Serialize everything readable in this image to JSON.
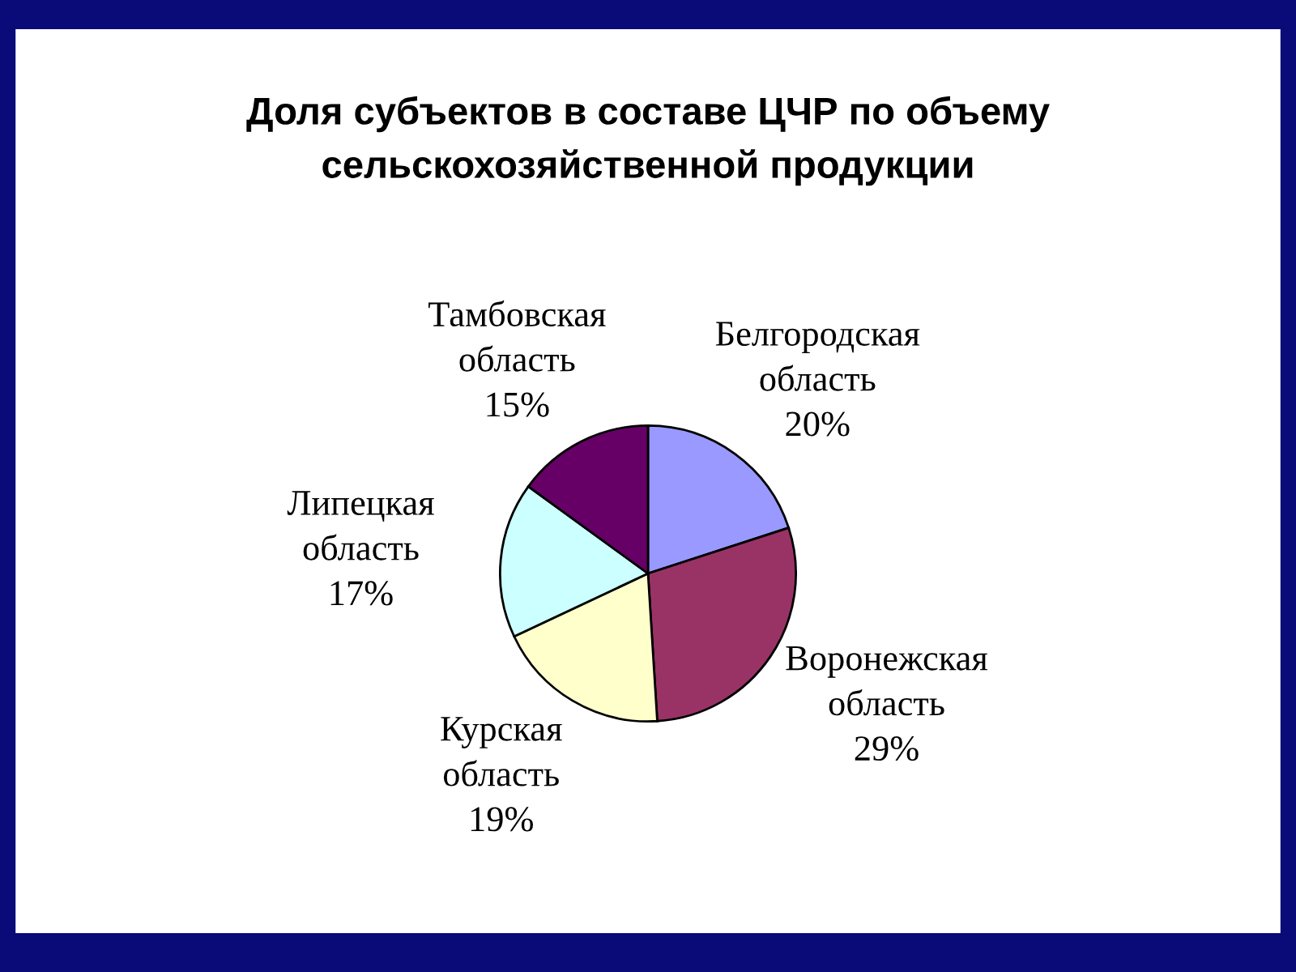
{
  "chart_data": {
    "type": "pie",
    "title": "Доля субъектов в составе ЦЧР по объему\nсельскохозяйственной продукции",
    "categories": [
      "Белгородская область",
      "Воронежская область",
      "Курская область",
      "Липецкая область",
      "Тамбовская область"
    ],
    "values": [
      20,
      29,
      19,
      17,
      15
    ],
    "value_labels": [
      "20%",
      "29%",
      "19%",
      "17%",
      "15%"
    ],
    "colors": [
      "#9999ff",
      "#993366",
      "#ffffcc",
      "#ccffff",
      "#660066"
    ],
    "legend": false
  }
}
